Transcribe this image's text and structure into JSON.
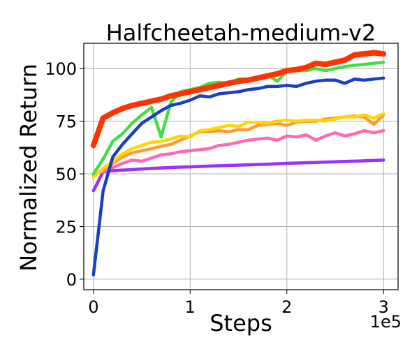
{
  "chart_data": {
    "type": "line",
    "title": "Halfcheetah-medium-v2",
    "xlabel": "Steps",
    "ylabel": "Normalized Return",
    "x_exponent_label": "1e5",
    "xlim": [
      -0.1,
      3.15
    ],
    "ylim": [
      -5,
      112
    ],
    "xticks": [
      0,
      1,
      2,
      3
    ],
    "xtick_labels": [
      "0",
      "1",
      "2",
      "3"
    ],
    "yticks": [
      0,
      25,
      50,
      75,
      100
    ],
    "ytick_labels": [
      "0",
      "25",
      "50",
      "75",
      "100"
    ],
    "grid": true,
    "legend": "none",
    "series": [
      {
        "color": "#9b30ff",
        "x": [
          0,
          0.1,
          0.2,
          0.3,
          0.4,
          0.5,
          0.6,
          0.7,
          0.8,
          0.9,
          1.0,
          1.2,
          1.4,
          1.6,
          1.8,
          2.0,
          2.2,
          2.4,
          2.6,
          2.8,
          3.0
        ],
        "y": [
          42,
          51,
          51.5,
          51.8,
          52,
          52.3,
          52.6,
          52.8,
          53,
          53.2,
          53.3,
          53.7,
          54,
          54.3,
          54.6,
          55,
          55.3,
          55.6,
          55.9,
          56.2,
          56.5
        ]
      },
      {
        "color": "#ff69b4",
        "x": [
          0,
          0.1,
          0.2,
          0.3,
          0.4,
          0.5,
          0.6,
          0.7,
          0.8,
          0.9,
          1.0,
          1.1,
          1.2,
          1.3,
          1.4,
          1.5,
          1.6,
          1.7,
          1.8,
          1.9,
          2.0,
          2.1,
          2.2,
          2.3,
          2.4,
          2.5,
          2.6,
          2.7,
          2.8,
          2.9,
          3.0
        ],
        "y": [
          50,
          51,
          53,
          55,
          56.5,
          56,
          57.5,
          59,
          59.5,
          60.5,
          61,
          61.5,
          62,
          63.5,
          64,
          65,
          66,
          66.5,
          67,
          66,
          68,
          67.5,
          68.5,
          66,
          68,
          69.5,
          68,
          69,
          70.5,
          69.5,
          70.5
        ]
      },
      {
        "color": "#ff9933",
        "x": [
          0,
          0.1,
          0.2,
          0.3,
          0.4,
          0.5,
          0.6,
          0.7,
          0.8,
          0.9,
          1.0,
          1.1,
          1.2,
          1.3,
          1.4,
          1.5,
          1.6,
          1.7,
          1.8,
          1.9,
          2.0,
          2.1,
          2.2,
          2.3,
          2.4,
          2.5,
          2.6,
          2.7,
          2.8,
          2.9,
          3.0
        ],
        "y": [
          49,
          52,
          55,
          58,
          60,
          61,
          62,
          63,
          64,
          66,
          68,
          70,
          70,
          70.5,
          70,
          71,
          71,
          73,
          73.5,
          74,
          73,
          74.5,
          75,
          75,
          76,
          76.5,
          77,
          77.5,
          77,
          73.5,
          78
        ]
      },
      {
        "color": "#ffd700",
        "x": [
          0,
          0.1,
          0.2,
          0.3,
          0.4,
          0.5,
          0.6,
          0.7,
          0.8,
          0.9,
          1.0,
          1.1,
          1.2,
          1.3,
          1.4,
          1.5,
          1.6,
          1.7,
          1.8,
          1.9,
          2.0,
          2.1,
          2.2,
          2.3,
          2.4,
          2.5,
          2.6,
          2.7,
          2.8,
          2.9,
          3.0
        ],
        "y": [
          48.5,
          52.5,
          56,
          59.5,
          62,
          63.5,
          65,
          65.5,
          66.5,
          68,
          67.5,
          70.5,
          71,
          72,
          73,
          72.5,
          74.5,
          74.5,
          74,
          75,
          75.5,
          75,
          75.5,
          75.5,
          75,
          76,
          77,
          77,
          78,
          76.5,
          78.5
        ]
      },
      {
        "color": "#44dd44",
        "x": [
          0,
          0.1,
          0.2,
          0.3,
          0.4,
          0.5,
          0.6,
          0.7,
          0.8,
          0.9,
          1.0,
          1.1,
          1.2,
          1.3,
          1.4,
          1.5,
          1.6,
          1.7,
          1.8,
          1.9,
          2.0,
          2.1,
          2.2,
          2.3,
          2.4,
          2.5,
          2.6,
          2.7,
          2.8,
          2.9,
          3.0
        ],
        "y": [
          50,
          57,
          65.5,
          69,
          74,
          78,
          81.5,
          67.5,
          84,
          89,
          90,
          91,
          93,
          93.5,
          93,
          95,
          95,
          96,
          97,
          94,
          98.5,
          99,
          99,
          100,
          99,
          100,
          101,
          101.5,
          102,
          102.5,
          103
        ]
      },
      {
        "color": "#1a3fbf",
        "x": [
          0,
          0.1,
          0.2,
          0.3,
          0.4,
          0.5,
          0.6,
          0.7,
          0.8,
          0.9,
          1.0,
          1.1,
          1.2,
          1.3,
          1.4,
          1.5,
          1.6,
          1.7,
          1.8,
          1.9,
          2.0,
          2.1,
          2.2,
          2.3,
          2.4,
          2.5,
          2.6,
          2.7,
          2.8,
          2.9,
          3.0
        ],
        "y": [
          2,
          42,
          58,
          64,
          69,
          74,
          77,
          80,
          82.5,
          83.5,
          85,
          87,
          86.5,
          88,
          88.5,
          89,
          90,
          90.5,
          91.5,
          91.5,
          92,
          91.5,
          93,
          94,
          94.5,
          94.5,
          93,
          95,
          94.5,
          95,
          95.5
        ]
      },
      {
        "color": "#ff3300",
        "x": [
          0,
          0.1,
          0.2,
          0.3,
          0.4,
          0.5,
          0.6,
          0.7,
          0.8,
          0.9,
          1.0,
          1.1,
          1.2,
          1.3,
          1.4,
          1.5,
          1.6,
          1.7,
          1.8,
          1.9,
          2.0,
          2.1,
          2.2,
          2.3,
          2.4,
          2.5,
          2.6,
          2.7,
          2.8,
          2.9,
          3.0
        ],
        "y": [
          63.5,
          76.5,
          79,
          81,
          82.5,
          83.5,
          84.5,
          85.5,
          87,
          88,
          89,
          90,
          91,
          92,
          93,
          94,
          94.5,
          95.5,
          96.5,
          97.5,
          99,
          99.5,
          100.5,
          102.5,
          102,
          103,
          104,
          106.5,
          107,
          107.5,
          107
        ]
      }
    ]
  }
}
